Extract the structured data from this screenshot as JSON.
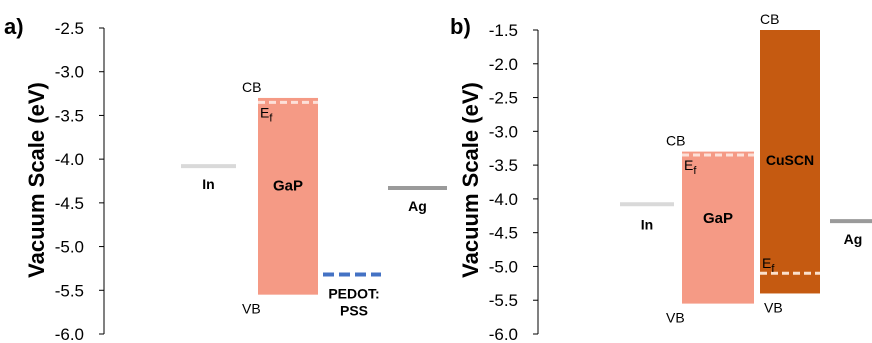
{
  "panels": [
    {
      "letter": "a)",
      "axis_title": "Vacuum Scale (eV)",
      "axis": {
        "min": -6.0,
        "max": -2.5,
        "step": 0.5,
        "tick_labels": [
          "-2.5",
          "-3.0",
          "-3.5",
          "-4.0",
          "-4.5",
          "-5.0",
          "-5.5",
          "-6.0"
        ]
      },
      "bands": [
        {
          "name": "GaP",
          "top": -3.3,
          "bottom": -5.55,
          "color": "#f59a85",
          "cb_label": "CB",
          "vb_label": "VB",
          "fermi": {
            "value": -3.35,
            "label_main": "E",
            "label_sub": "f",
            "color": "#fde0d8"
          }
        }
      ],
      "levels": [
        {
          "name": "In",
          "value": -4.08,
          "color": "#d9d9d9"
        },
        {
          "name": "Ag",
          "value": -4.33,
          "color": "#9a9a9a"
        },
        {
          "name_line1": "PEDOT:",
          "name_line2": "PSS",
          "value": -5.32,
          "color": "#4472c4",
          "dashed": true
        }
      ]
    },
    {
      "letter": "b)",
      "axis_title": "Vacuum Scale (eV)",
      "axis": {
        "min": -6.0,
        "max": -1.5,
        "step": 0.5,
        "tick_labels": [
          "-1.5",
          "-2.0",
          "-2.5",
          "-3.0",
          "-3.5",
          "-4.0",
          "-4.5",
          "-5.0",
          "-5.5",
          "-6.0"
        ]
      },
      "bands": [
        {
          "name": "GaP",
          "top": -3.3,
          "bottom": -5.55,
          "color": "#f59a85",
          "cb_label": "CB",
          "vb_label": "VB",
          "fermi": {
            "value": -3.35,
            "label_main": "E",
            "label_sub": "f",
            "color": "#fde0d8"
          }
        },
        {
          "name": "CuSCN",
          "top": -1.5,
          "bottom": -5.4,
          "color": "#c55a11",
          "cb_label": "CB",
          "vb_label": "VB",
          "fermi": {
            "value": -5.1,
            "label_main": "E",
            "label_sub": "f",
            "color": "#fbe0cc"
          }
        }
      ],
      "levels": [
        {
          "name": "In",
          "value": -4.08,
          "color": "#d9d9d9"
        },
        {
          "name": "Ag",
          "value": -4.33,
          "color": "#9a9a9a"
        }
      ]
    }
  ]
}
